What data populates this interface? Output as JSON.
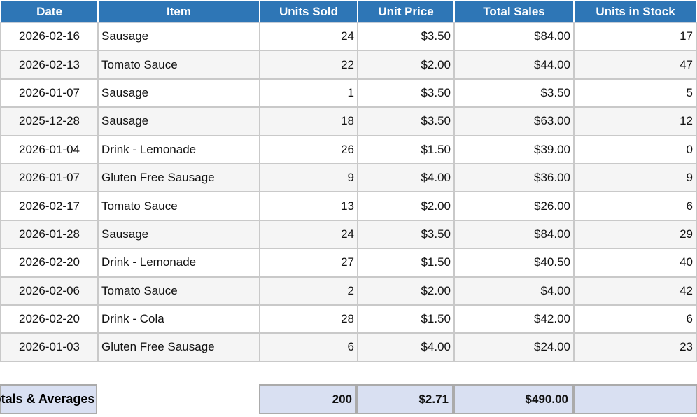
{
  "table": {
    "columns": [
      {
        "key": "date",
        "label": "Date"
      },
      {
        "key": "item",
        "label": "Item"
      },
      {
        "key": "units_sold",
        "label": "Units Sold"
      },
      {
        "key": "unit_price",
        "label": "Unit Price"
      },
      {
        "key": "total_sales",
        "label": "Total Sales"
      },
      {
        "key": "units_in_stock",
        "label": "Units in Stock"
      }
    ],
    "rows": [
      {
        "date": "2026-02-16",
        "item": "Sausage",
        "units_sold": "24",
        "unit_price": "$3.50",
        "total_sales": "$84.00",
        "units_in_stock": "17"
      },
      {
        "date": "2026-02-13",
        "item": "Tomato Sauce",
        "units_sold": "22",
        "unit_price": "$2.00",
        "total_sales": "$44.00",
        "units_in_stock": "47"
      },
      {
        "date": "2026-01-07",
        "item": "Sausage",
        "units_sold": "1",
        "unit_price": "$3.50",
        "total_sales": "$3.50",
        "units_in_stock": "5"
      },
      {
        "date": "2025-12-28",
        "item": "Sausage",
        "units_sold": "18",
        "unit_price": "$3.50",
        "total_sales": "$63.00",
        "units_in_stock": "12"
      },
      {
        "date": "2026-01-04",
        "item": "Drink - Lemonade",
        "units_sold": "26",
        "unit_price": "$1.50",
        "total_sales": "$39.00",
        "units_in_stock": "0"
      },
      {
        "date": "2026-01-07",
        "item": "Gluten Free Sausage",
        "units_sold": "9",
        "unit_price": "$4.00",
        "total_sales": "$36.00",
        "units_in_stock": "9"
      },
      {
        "date": "2026-02-17",
        "item": "Tomato Sauce",
        "units_sold": "13",
        "unit_price": "$2.00",
        "total_sales": "$26.00",
        "units_in_stock": "6"
      },
      {
        "date": "2026-01-28",
        "item": "Sausage",
        "units_sold": "24",
        "unit_price": "$3.50",
        "total_sales": "$84.00",
        "units_in_stock": "29"
      },
      {
        "date": "2026-02-20",
        "item": "Drink - Lemonade",
        "units_sold": "27",
        "unit_price": "$1.50",
        "total_sales": "$40.50",
        "units_in_stock": "40"
      },
      {
        "date": "2026-02-06",
        "item": "Tomato Sauce",
        "units_sold": "2",
        "unit_price": "$2.00",
        "total_sales": "$4.00",
        "units_in_stock": "42"
      },
      {
        "date": "2026-02-20",
        "item": "Drink - Cola",
        "units_sold": "28",
        "unit_price": "$1.50",
        "total_sales": "$42.00",
        "units_in_stock": "6"
      },
      {
        "date": "2026-01-03",
        "item": "Gluten Free Sausage",
        "units_sold": "6",
        "unit_price": "$4.00",
        "total_sales": "$24.00",
        "units_in_stock": "23"
      }
    ],
    "totals": {
      "label": "Totals & Averages",
      "units_sold": "200",
      "unit_price": "$2.71",
      "total_sales": "$490.00",
      "units_in_stock": ""
    }
  },
  "colors": {
    "header_bg": "#2E76B6",
    "header_text": "#FFFFFF",
    "row_bg": "#FFFFFF",
    "row_alt_bg": "#F5F5F5",
    "grid_border": "#C9C9C9",
    "totals_bg": "#D9E0F2",
    "totals_border": "#ABABAB"
  }
}
